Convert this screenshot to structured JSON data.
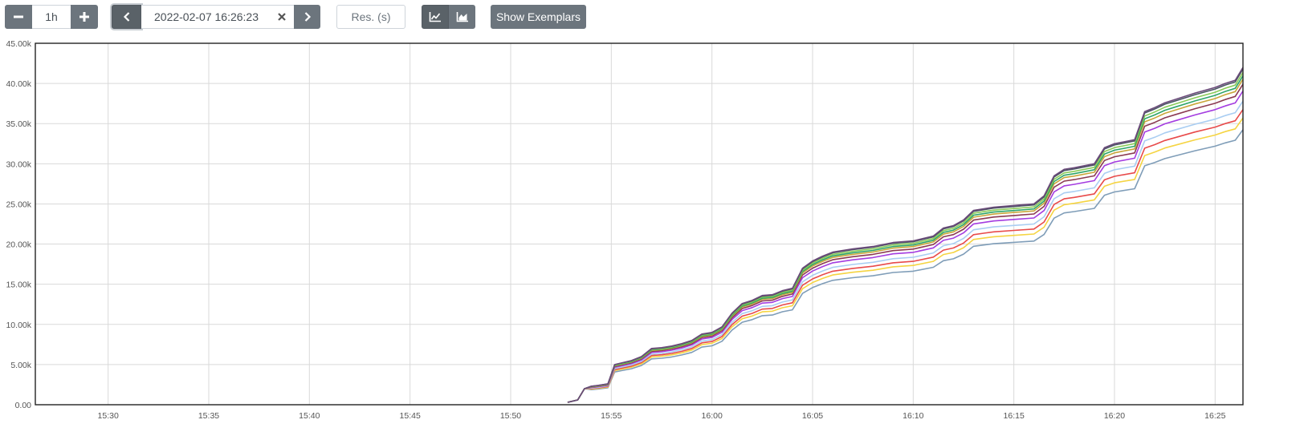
{
  "toolbar": {
    "range_decrease_icon": "minus-icon",
    "range_value": "1h",
    "range_increase_icon": "plus-icon",
    "end_prev_icon": "chevron-left-icon",
    "end_time_value": "2022-02-07 16:26:23",
    "end_clear_icon": "close-icon",
    "end_next_icon": "chevron-right-icon",
    "resolution_placeholder": "Res. (s)",
    "line_mode_icon": "line-chart-icon",
    "stacked_mode_icon": "area-chart-icon",
    "show_exemplars_label": "Show Exemplars"
  },
  "chart_data": {
    "type": "line",
    "title": "",
    "xlabel": "",
    "ylabel": "",
    "x_ticks": [
      "15:30",
      "15:35",
      "15:40",
      "15:45",
      "15:50",
      "15:55",
      "16:00",
      "16:05",
      "16:10",
      "16:15",
      "16:20",
      "16:25"
    ],
    "y_ticks": [
      "0.00",
      "5.00k",
      "10.00k",
      "15.00k",
      "20.00k",
      "25.00k",
      "30.00k",
      "35.00k",
      "40.00k",
      "45.00k"
    ],
    "ylim": [
      0,
      45000
    ],
    "x_domain": [
      "15:26:23",
      "16:26:23"
    ],
    "grid": true,
    "legend": "none",
    "total_series": {
      "x": [
        "15:52:50",
        "15:53:20",
        "15:53:40",
        "15:54:00",
        "15:54:20",
        "15:54:50",
        "15:55:10",
        "15:55:30",
        "15:56:00",
        "15:56:30",
        "15:57:00",
        "15:57:30",
        "15:58:00",
        "15:58:30",
        "15:59:00",
        "15:59:30",
        "16:00:00",
        "16:00:30",
        "16:01:00",
        "16:01:30",
        "16:02:00",
        "16:02:30",
        "16:03:00",
        "16:03:30",
        "16:04:00",
        "16:04:30",
        "16:05:00",
        "16:05:30",
        "16:06:00",
        "16:07:00",
        "16:08:00",
        "16:09:00",
        "16:10:00",
        "16:11:00",
        "16:11:30",
        "16:12:00",
        "16:12:30",
        "16:13:00",
        "16:13:30",
        "16:14:00",
        "16:15:00",
        "16:16:00",
        "16:16:30",
        "16:17:00",
        "16:17:30",
        "16:18:00",
        "16:19:00",
        "16:19:30",
        "16:20:00",
        "16:21:00",
        "16:21:30",
        "16:22:00",
        "16:22:30",
        "16:23:00",
        "16:24:00",
        "16:25:00",
        "16:25:30",
        "16:26:00",
        "16:26:23"
      ],
      "values": [
        300,
        600,
        2000,
        2300,
        2400,
        2600,
        5000,
        5200,
        5500,
        6000,
        7000,
        7100,
        7300,
        7600,
        8000,
        8800,
        9000,
        9700,
        11400,
        12600,
        13000,
        13600,
        13700,
        14200,
        14500,
        17000,
        17900,
        18500,
        19000,
        19400,
        19700,
        20200,
        20400,
        21000,
        22000,
        22300,
        23000,
        24200,
        24400,
        24600,
        24800,
        25000,
        26000,
        28500,
        29300,
        29500,
        30000,
        32000,
        32500,
        33000,
        36500,
        37000,
        37600,
        38000,
        38800,
        39500,
        40000,
        40400,
        42000
      ]
    },
    "series": [
      {
        "color": "#6b4a7a",
        "ratio": 1.0
      },
      {
        "color": "#4a5563",
        "ratio": 0.995
      },
      {
        "color": "#8acb58",
        "ratio": 0.985
      },
      {
        "color": "#2ea56a",
        "ratio": 0.975
      },
      {
        "color": "#c9a63a",
        "ratio": 0.965
      },
      {
        "color": "#8b3a52",
        "ratio": 0.95
      },
      {
        "color": "#a43ce0",
        "ratio": 0.93
      },
      {
        "color": "#a9cdf2",
        "ratio": 0.9
      },
      {
        "color": "#e84a4a",
        "ratio": 0.875
      },
      {
        "color": "#f5d442",
        "ratio": 0.85
      },
      {
        "color": "#7f9db8",
        "ratio": 0.815
      }
    ]
  }
}
